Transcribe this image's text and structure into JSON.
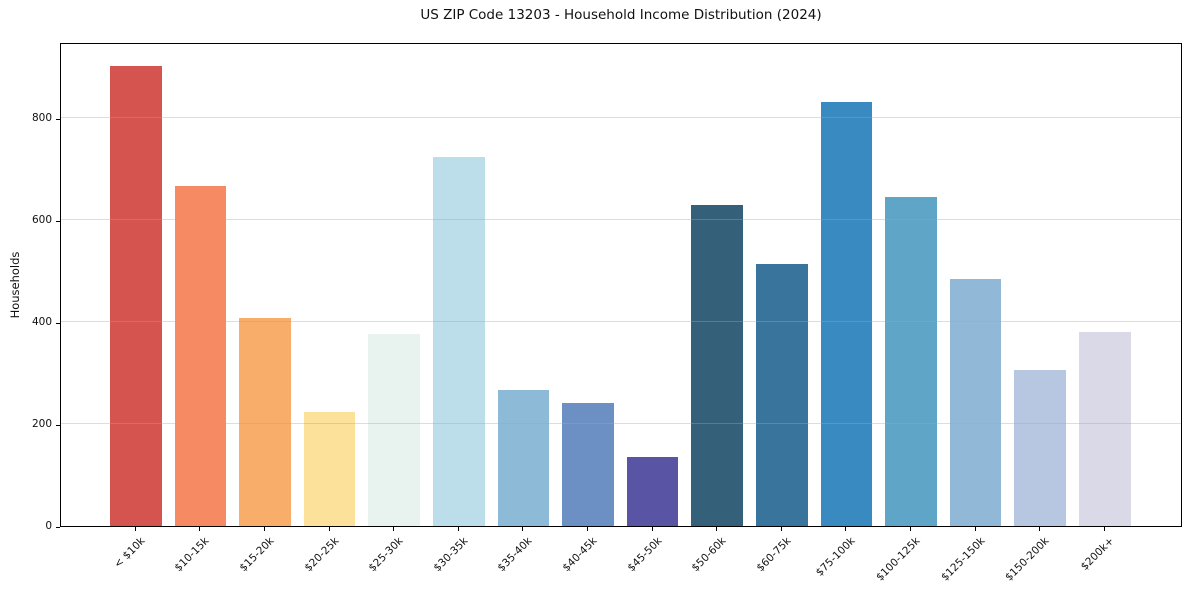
{
  "chart_data": {
    "type": "bar",
    "title": "US ZIP Code 13203 - Household Income Distribution (2024)",
    "xlabel": "",
    "ylabel": "Households",
    "categories": [
      "< $10k",
      "$10-15k",
      "$15-20k",
      "$20-25k",
      "$25-30k",
      "$30-35k",
      "$35-40k",
      "$40-45k",
      "$45-50k",
      "$50-60k",
      "$60-75k",
      "$75-100k",
      "$100-125k",
      "$125-150k",
      "$150-200k",
      "$200k+"
    ],
    "values": [
      903,
      667,
      409,
      224,
      376,
      725,
      266,
      242,
      136,
      631,
      515,
      832,
      645,
      485,
      307,
      381
    ],
    "bar_colors": [
      "#d6544f",
      "#f68a62",
      "#f9ad6a",
      "#fce19b",
      "#e8f3f0",
      "#bcdeea",
      "#8cbad7",
      "#6c90c4",
      "#5a54a4",
      "#34607a",
      "#39749c",
      "#3a8ac2",
      "#5fa5c8",
      "#92b8d7",
      "#b7c7e2",
      "#d9d9e8"
    ],
    "ylim": [
      0,
      950
    ],
    "yticks": [
      0,
      200,
      400,
      600,
      800
    ],
    "grid": true,
    "legend": "none"
  }
}
